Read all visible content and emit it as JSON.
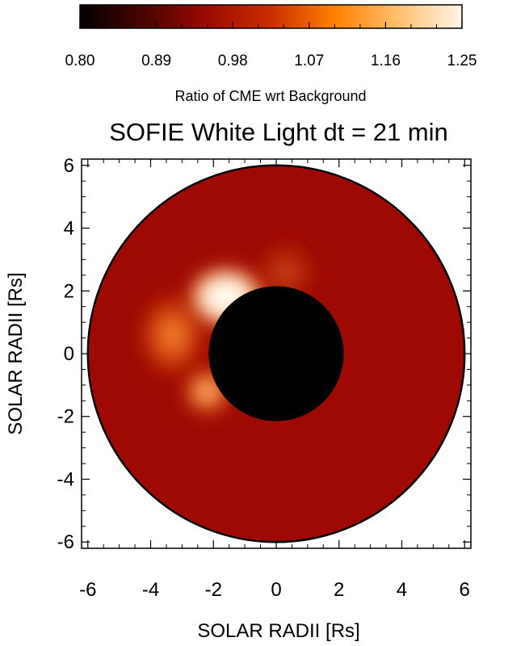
{
  "chart_data": {
    "type": "heatmap",
    "title": "SOFIE White Light  dt = 21 min",
    "xlabel": "SOLAR RADII [Rs]",
    "ylabel": "SOLAR RADII [Rs]",
    "xlim": [
      -6.2,
      6.2
    ],
    "ylim": [
      -6.2,
      6.2
    ],
    "xticks": [
      "-6",
      "-4",
      "-2",
      "0",
      "2",
      "4",
      "6"
    ],
    "yticks": [
      "-6",
      "-4",
      "-2",
      "0",
      "2",
      "4",
      "6"
    ],
    "grid": false,
    "colorbar": {
      "label": "Ratio of CME wrt Background",
      "range": [
        0.8,
        1.25
      ],
      "tick_labels": [
        "0.80",
        "0.89",
        "0.98",
        "1.07",
        "1.16",
        "1.25"
      ],
      "colors": [
        "#000000",
        "#4a0400",
        "#9c0a00",
        "#cc2e00",
        "#ff8000",
        "#ffbf6e",
        "#fff6e8"
      ]
    },
    "field_of_view": {
      "outer_radius_rs": 6.0,
      "occulter_radius_rs": 2.15,
      "background_ratio": 1.0,
      "background_color": "#9e0a03",
      "occulter_color": "#000000"
    },
    "features": [
      {
        "name": "CME bright core",
        "center": [
          -1.6,
          1.8
        ],
        "radius": 1.3,
        "peak_ratio": 1.25
      },
      {
        "name": "CME east flank",
        "center": [
          -3.3,
          0.6
        ],
        "radius": 1.2,
        "peak_ratio": 1.16
      },
      {
        "name": "CME southern leg",
        "center": [
          -2.2,
          -1.2
        ],
        "radius": 0.9,
        "peak_ratio": 1.14
      },
      {
        "name": "CME northern arc",
        "center": [
          0.3,
          2.6
        ],
        "radius": 1.1,
        "peak_ratio": 1.05
      }
    ]
  }
}
